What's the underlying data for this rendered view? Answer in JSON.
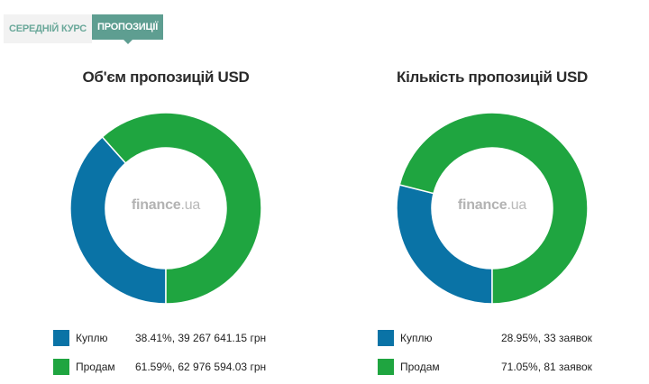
{
  "tabs": [
    {
      "label": "Середній курс",
      "active": false
    },
    {
      "label": "Пропозиції",
      "active": true
    }
  ],
  "colors": {
    "buy": "#0a73a6",
    "sell": "#1fa540"
  },
  "watermark": {
    "brand": "finance",
    "domain": ".ua"
  },
  "chart_data": [
    {
      "type": "pie",
      "title": "Об'єм пропозицій USD",
      "categories": [
        "Куплю",
        "Продам"
      ],
      "values": [
        38.41,
        61.59
      ],
      "legend": [
        {
          "label": "Куплю",
          "value": "38.41%, 39 267 641.15 грн"
        },
        {
          "label": "Продам",
          "value": "61.59%, 62 976 594.03 грн"
        }
      ],
      "legend_position": "bottom"
    },
    {
      "type": "pie",
      "title": "Кількість пропозицій USD",
      "categories": [
        "Куплю",
        "Продам"
      ],
      "values": [
        28.95,
        71.05
      ],
      "legend": [
        {
          "label": "Куплю",
          "value": "28.95%, 33 заявок"
        },
        {
          "label": "Продам",
          "value": "71.05%, 81 заявок"
        }
      ],
      "legend_position": "bottom"
    }
  ]
}
